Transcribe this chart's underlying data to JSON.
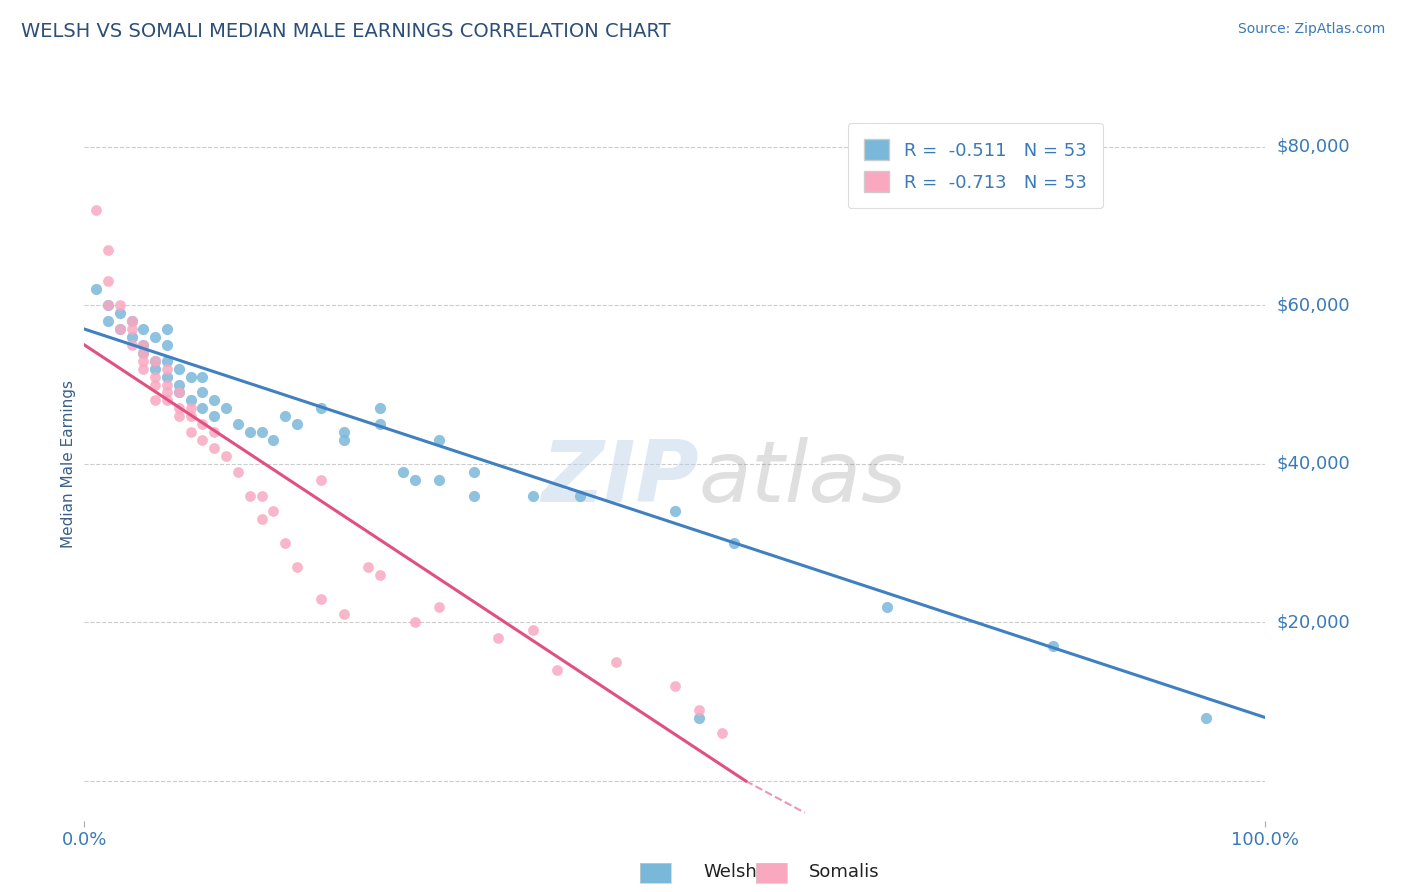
{
  "title": "WELSH VS SOMALI MEDIAN MALE EARNINGS CORRELATION CHART",
  "source": "Source: ZipAtlas.com",
  "ylabel": "Median Male Earnings",
  "xlim": [
    0,
    1.0
  ],
  "ylim": [
    -5000,
    85000
  ],
  "yticks": [
    0,
    20000,
    40000,
    60000,
    80000
  ],
  "xtick_vals": [
    0.0,
    1.0
  ],
  "xtick_labels": [
    "0.0%",
    "100.0%"
  ],
  "welsh_R": -0.511,
  "somali_R": -0.713,
  "N": 53,
  "welsh_color": "#7ab8d9",
  "somali_color": "#f9a8c0",
  "welsh_line_color": "#4080c0",
  "somali_line_color": "#e05080",
  "background_color": "#ffffff",
  "grid_color": "#cccccc",
  "title_color": "#2c4f7a",
  "axis_label_color": "#3a5f8a",
  "tick_label_color": "#3a7ab8",
  "legend_R_color": "#e05080",
  "watermark_color": "#b8d0e8",
  "welsh_line_x0": 0.0,
  "welsh_line_x1": 1.0,
  "welsh_line_y0": 57000,
  "welsh_line_y1": 8000,
  "somali_line_x0": 0.0,
  "somali_line_x1": 0.56,
  "somali_line_y0": 55000,
  "somali_line_y1": 0,
  "welsh_scatter_x": [
    0.01,
    0.02,
    0.02,
    0.03,
    0.03,
    0.04,
    0.04,
    0.05,
    0.05,
    0.05,
    0.06,
    0.06,
    0.06,
    0.07,
    0.07,
    0.07,
    0.07,
    0.08,
    0.08,
    0.08,
    0.09,
    0.09,
    0.1,
    0.1,
    0.1,
    0.11,
    0.11,
    0.12,
    0.13,
    0.14,
    0.15,
    0.16,
    0.17,
    0.18,
    0.2,
    0.22,
    0.25,
    0.27,
    0.3,
    0.33,
    0.22,
    0.25,
    0.28,
    0.3,
    0.33,
    0.38,
    0.42,
    0.5,
    0.52,
    0.55,
    0.68,
    0.82,
    0.95
  ],
  "welsh_scatter_y": [
    62000,
    60000,
    58000,
    57000,
    59000,
    56000,
    58000,
    55000,
    57000,
    54000,
    53000,
    56000,
    52000,
    55000,
    53000,
    51000,
    57000,
    50000,
    52000,
    49000,
    48000,
    51000,
    49000,
    47000,
    51000,
    46000,
    48000,
    47000,
    45000,
    44000,
    44000,
    43000,
    46000,
    45000,
    47000,
    44000,
    45000,
    39000,
    38000,
    36000,
    43000,
    47000,
    38000,
    43000,
    39000,
    36000,
    36000,
    34000,
    8000,
    30000,
    22000,
    17000,
    8000
  ],
  "somali_scatter_x": [
    0.01,
    0.02,
    0.02,
    0.02,
    0.03,
    0.03,
    0.04,
    0.04,
    0.04,
    0.05,
    0.05,
    0.05,
    0.05,
    0.06,
    0.06,
    0.06,
    0.06,
    0.07,
    0.07,
    0.07,
    0.07,
    0.08,
    0.08,
    0.08,
    0.09,
    0.09,
    0.09,
    0.1,
    0.1,
    0.11,
    0.11,
    0.12,
    0.13,
    0.14,
    0.15,
    0.15,
    0.16,
    0.17,
    0.18,
    0.2,
    0.22,
    0.25,
    0.28,
    0.3,
    0.35,
    0.4,
    0.45,
    0.5,
    0.52,
    0.54,
    0.2,
    0.24,
    0.38
  ],
  "somali_scatter_y": [
    72000,
    67000,
    63000,
    60000,
    60000,
    57000,
    58000,
    55000,
    57000,
    54000,
    55000,
    52000,
    53000,
    51000,
    50000,
    53000,
    48000,
    50000,
    49000,
    48000,
    52000,
    47000,
    46000,
    49000,
    46000,
    44000,
    47000,
    45000,
    43000,
    42000,
    44000,
    41000,
    39000,
    36000,
    36000,
    33000,
    34000,
    30000,
    27000,
    23000,
    21000,
    26000,
    20000,
    22000,
    18000,
    14000,
    15000,
    12000,
    9000,
    6000,
    38000,
    27000,
    19000
  ]
}
